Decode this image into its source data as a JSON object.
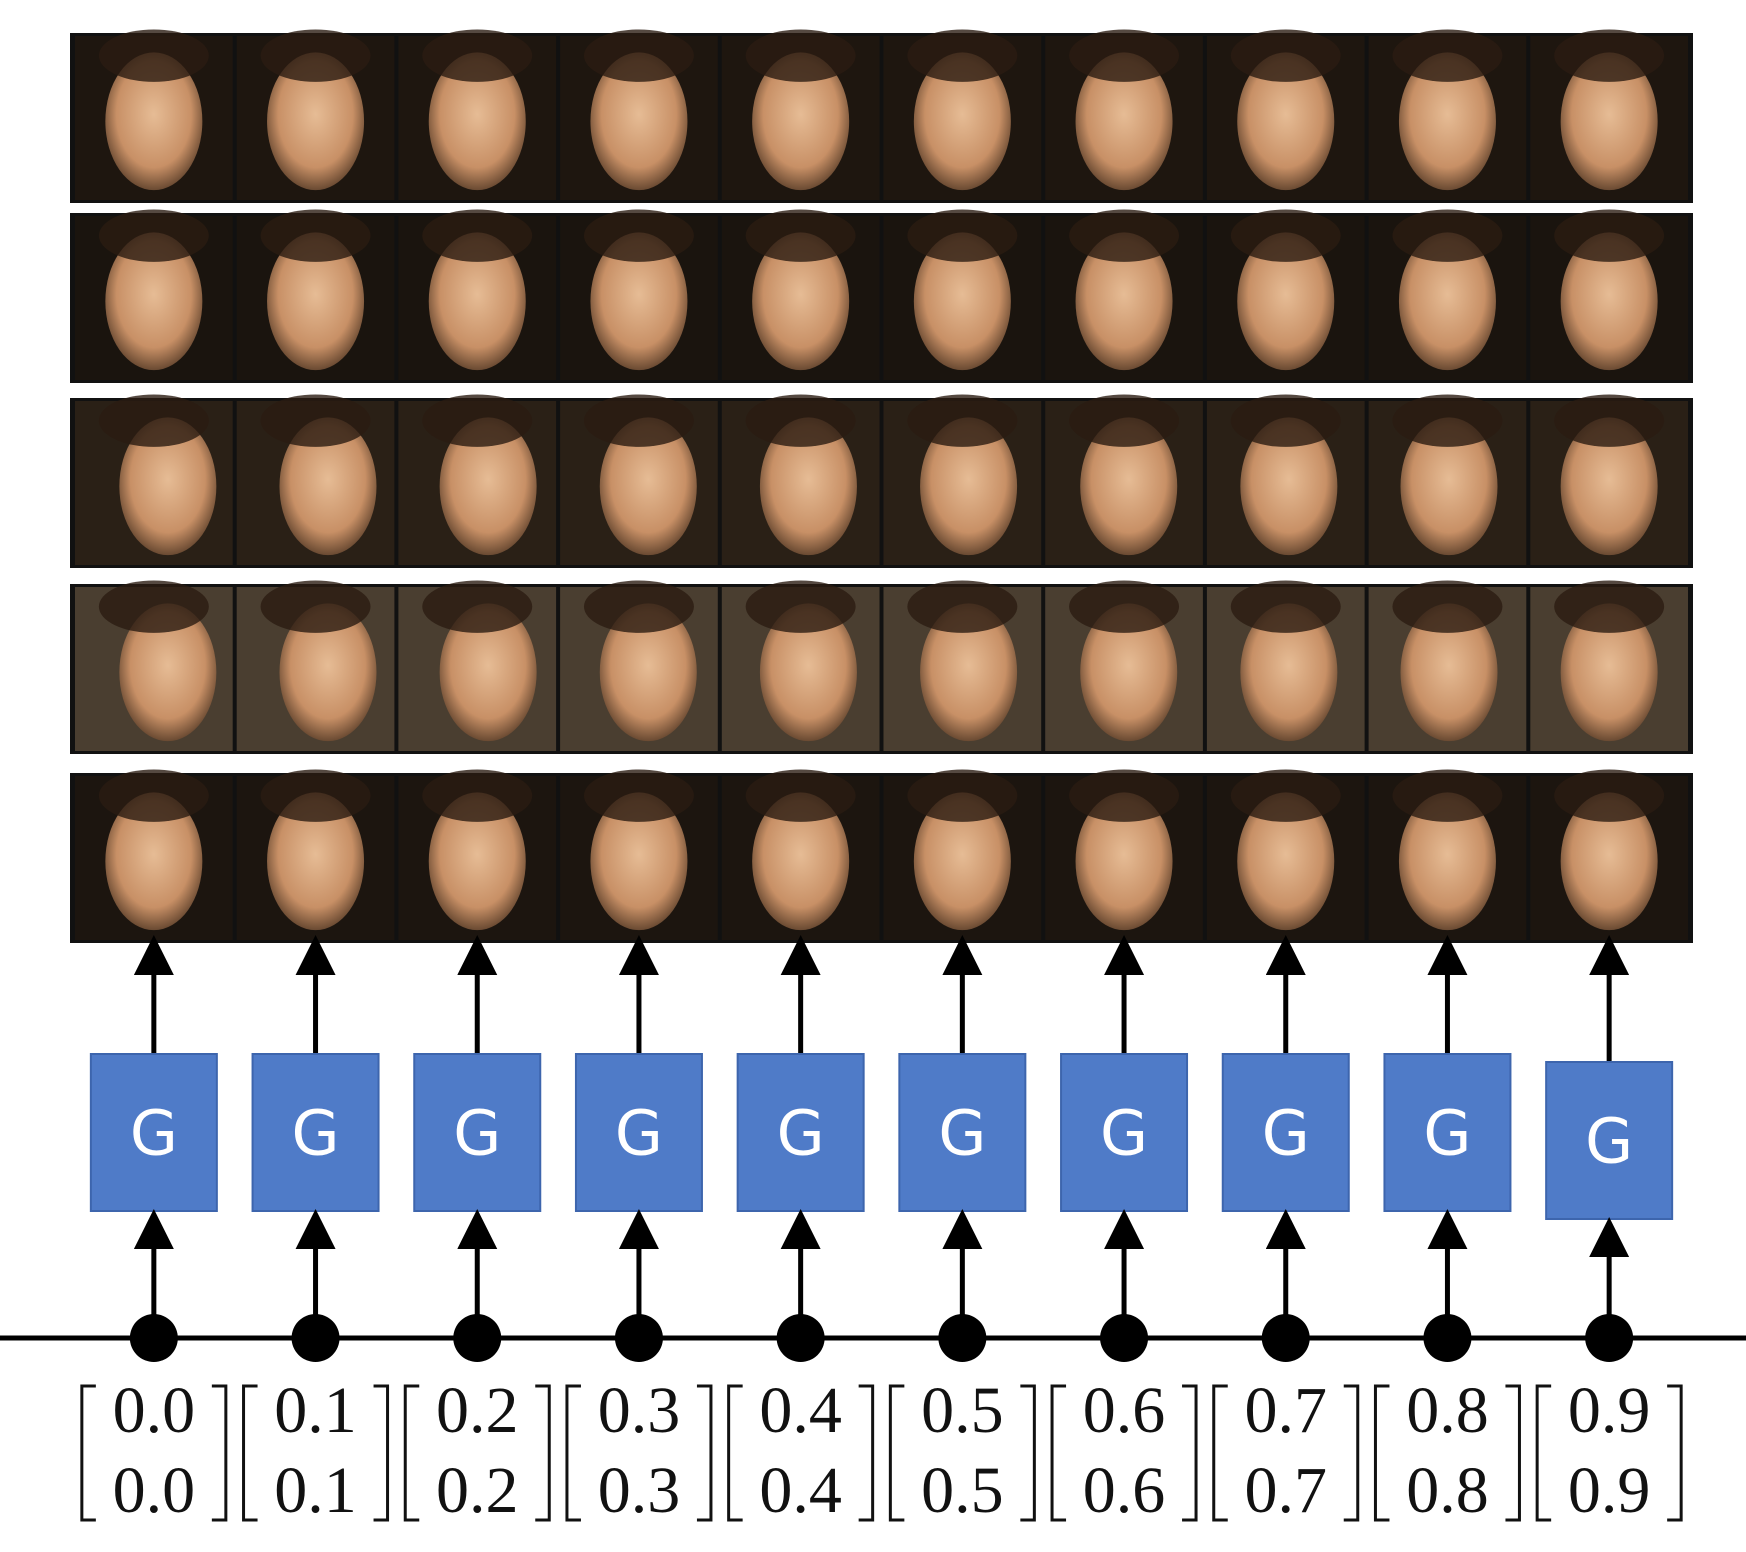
{
  "columns": [
    {
      "generator": "G",
      "vector": [
        "0.0",
        "0.0"
      ]
    },
    {
      "generator": "G",
      "vector": [
        "0.1",
        "0.1"
      ]
    },
    {
      "generator": "G",
      "vector": [
        "0.2",
        "0.2"
      ]
    },
    {
      "generator": "G",
      "vector": [
        "0.3",
        "0.3"
      ]
    },
    {
      "generator": "G",
      "vector": [
        "0.4",
        "0.4"
      ]
    },
    {
      "generator": "G",
      "vector": [
        "0.5",
        "0.5"
      ]
    },
    {
      "generator": "G",
      "vector": [
        "0.6",
        "0.6"
      ]
    },
    {
      "generator": "G",
      "vector": [
        "0.7",
        "0.7"
      ]
    },
    {
      "generator": "G",
      "vector": [
        "0.8",
        "0.8"
      ]
    },
    {
      "generator": "G",
      "vector": [
        "0.9",
        "0.9"
      ]
    }
  ]
}
